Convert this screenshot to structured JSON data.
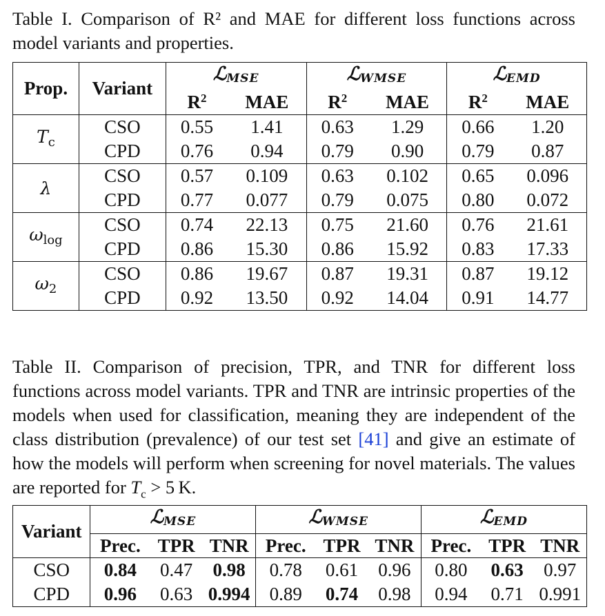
{
  "table1": {
    "caption": "Table I. Comparison of R² and MAE for different loss functions across model variants and properties.",
    "headers": {
      "prop": "Prop.",
      "variant": "Variant",
      "r2": "R",
      "r2_sup": "2",
      "mae": "MAE"
    },
    "loss_functions": [
      {
        "script": "ℒ",
        "sub": "MSE"
      },
      {
        "script": "ℒ",
        "sub": "WMSE"
      },
      {
        "script": "ℒ",
        "sub": "EMD"
      }
    ],
    "groups": [
      {
        "prop": "T",
        "prop_sub": "c",
        "rows": [
          {
            "variant": "CSO",
            "values": [
              "0.55",
              "1.41",
              "0.63",
              "1.29",
              "0.66",
              "1.20"
            ]
          },
          {
            "variant": "CPD",
            "values": [
              "0.76",
              "0.94",
              "0.79",
              "0.90",
              "0.79",
              "0.87"
            ]
          }
        ]
      },
      {
        "prop": "λ",
        "prop_sub": "",
        "rows": [
          {
            "variant": "CSO",
            "values": [
              "0.57",
              "0.109",
              "0.63",
              "0.102",
              "0.65",
              "0.096"
            ]
          },
          {
            "variant": "CPD",
            "values": [
              "0.77",
              "0.077",
              "0.79",
              "0.075",
              "0.80",
              "0.072"
            ]
          }
        ]
      },
      {
        "prop": "ω",
        "prop_sub": "log",
        "rows": [
          {
            "variant": "CSO",
            "values": [
              "0.74",
              "22.13",
              "0.75",
              "21.60",
              "0.76",
              "21.61"
            ]
          },
          {
            "variant": "CPD",
            "values": [
              "0.86",
              "15.30",
              "0.86",
              "15.92",
              "0.83",
              "17.33"
            ]
          }
        ]
      },
      {
        "prop": "ω",
        "prop_sub": "2",
        "rows": [
          {
            "variant": "CSO",
            "values": [
              "0.86",
              "19.67",
              "0.87",
              "19.31",
              "0.87",
              "19.12"
            ]
          },
          {
            "variant": "CPD",
            "values": [
              "0.92",
              "13.50",
              "0.92",
              "14.04",
              "0.91",
              "14.77"
            ]
          }
        ]
      }
    ]
  },
  "table2": {
    "caption_part1": "Table II. Comparison of precision, TPR, and TNR for different loss functions across model variants. TPR and TNR are intrinsic properties of the models when used for classification, meaning they are independent of the class distribution (prevalence) of our test set ",
    "caption_ref": "[41]",
    "caption_part2": " and give an estimate of how the models will perform when screening for novel materials. The values are reported for ",
    "caption_math_var": "T",
    "caption_math_sub": "c",
    "caption_math_rest": " > 5 K.",
    "headers": {
      "variant": "Variant",
      "prec": "Prec.",
      "tpr": "TPR",
      "tnr": "TNR"
    },
    "rows": [
      {
        "variant": "CSO",
        "values": [
          "0.84",
          "0.47",
          "0.98",
          "0.78",
          "0.61",
          "0.96",
          "0.80",
          "0.63",
          "0.97"
        ],
        "bold": [
          true,
          false,
          true,
          false,
          false,
          false,
          false,
          true,
          false
        ]
      },
      {
        "variant": "CPD",
        "values": [
          "0.96",
          "0.63",
          "0.994",
          "0.89",
          "0.74",
          "0.98",
          "0.94",
          "0.71",
          "0.991"
        ],
        "bold": [
          true,
          false,
          true,
          false,
          true,
          false,
          false,
          false,
          false
        ]
      }
    ]
  }
}
